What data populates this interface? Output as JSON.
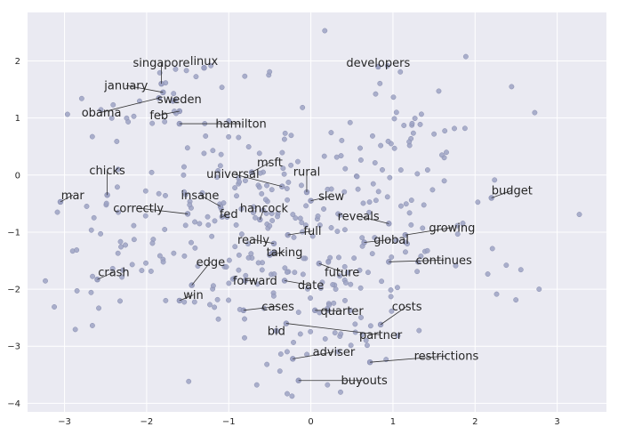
{
  "chart_data": {
    "type": "scatter",
    "title": "",
    "xlabel": "",
    "ylabel": "",
    "xlim": [
      -3.45,
      3.6
    ],
    "ylim": [
      -4.15,
      2.85
    ],
    "xticks": [
      -3,
      -2,
      -1,
      0,
      1,
      2,
      3
    ],
    "yticks": [
      2,
      1,
      0,
      -1,
      -2,
      -3,
      -4
    ],
    "grid": true,
    "colors": {
      "background": "#eaeaf2",
      "grid": "#ffffff",
      "point": "#9ea3c4",
      "point_edge": "#8a8fb0",
      "text": "#262626"
    },
    "labeled_points": [
      {
        "word": "linux",
        "x": -1.3,
        "y": 1.88,
        "lx": -1.3,
        "ly": 2.0
      },
      {
        "word": "singapore",
        "x": -1.82,
        "y": 1.6,
        "lx": -1.82,
        "ly": 1.97
      },
      {
        "word": "developers",
        "x": 0.82,
        "y": 1.9,
        "lx": 0.82,
        "ly": 1.97
      },
      {
        "word": "january",
        "x": -1.8,
        "y": 1.45,
        "lx": -2.25,
        "ly": 1.57
      },
      {
        "word": "sweden",
        "x": -1.68,
        "y": 1.3,
        "lx": -1.6,
        "ly": 1.33
      },
      {
        "word": "obama",
        "x": -1.85,
        "y": 1.35,
        "lx": -2.55,
        "ly": 1.1
      },
      {
        "word": "feb",
        "x": -1.6,
        "y": 1.12,
        "lx": -1.85,
        "ly": 1.05
      },
      {
        "word": "hamilton",
        "x": -1.6,
        "y": 0.9,
        "lx": -0.85,
        "ly": 0.9
      },
      {
        "word": "chicks",
        "x": -2.48,
        "y": -0.35,
        "lx": -2.48,
        "ly": 0.08
      },
      {
        "word": "msft",
        "x": -0.72,
        "y": 0.05,
        "lx": -0.5,
        "ly": 0.22
      },
      {
        "word": "rural",
        "x": -0.05,
        "y": -0.3,
        "lx": -0.05,
        "ly": 0.06
      },
      {
        "word": "universal",
        "x": -0.35,
        "y": -0.2,
        "lx": -0.95,
        "ly": 0.02
      },
      {
        "word": "mar",
        "x": -3.05,
        "y": -0.47,
        "lx": -2.9,
        "ly": -0.35
      },
      {
        "word": "budget",
        "x": 2.2,
        "y": -0.4,
        "lx": 2.45,
        "ly": -0.27
      },
      {
        "word": "insane",
        "x": -1.1,
        "y": -0.55,
        "lx": -1.35,
        "ly": -0.35
      },
      {
        "word": "slew",
        "x": 0.0,
        "y": -0.45,
        "lx": 0.25,
        "ly": -0.37
      },
      {
        "word": "correctly",
        "x": -1.5,
        "y": -0.68,
        "lx": -2.1,
        "ly": -0.58
      },
      {
        "word": "hancock",
        "x": -0.62,
        "y": -0.78,
        "lx": -0.57,
        "ly": -0.58
      },
      {
        "word": "fed",
        "x": -1.08,
        "y": -0.73,
        "lx": -1.0,
        "ly": -0.68
      },
      {
        "word": "reveals",
        "x": 0.95,
        "y": -0.85,
        "lx": 0.58,
        "ly": -0.72
      },
      {
        "word": "growing",
        "x": 1.15,
        "y": -1.05,
        "lx": 1.72,
        "ly": -0.92
      },
      {
        "word": "full",
        "x": -0.28,
        "y": -1.05,
        "lx": 0.02,
        "ly": -0.98
      },
      {
        "word": "really",
        "x": -0.45,
        "y": -1.2,
        "lx": -0.7,
        "ly": -1.13
      },
      {
        "word": "global",
        "x": 0.65,
        "y": -1.18,
        "lx": 0.98,
        "ly": -1.13
      },
      {
        "word": "taking",
        "x": -0.5,
        "y": -1.4,
        "lx": -0.32,
        "ly": -1.35
      },
      {
        "word": "continues",
        "x": 0.95,
        "y": -1.52,
        "lx": 1.62,
        "ly": -1.49
      },
      {
        "word": "edge",
        "x": -1.45,
        "y": -1.93,
        "lx": -1.22,
        "ly": -1.52
      },
      {
        "word": "crash",
        "x": -2.6,
        "y": -1.83,
        "lx": -2.4,
        "ly": -1.7
      },
      {
        "word": "future",
        "x": 0.1,
        "y": -1.55,
        "lx": 0.38,
        "ly": -1.7
      },
      {
        "word": "forward",
        "x": -0.8,
        "y": -1.85,
        "lx": -0.68,
        "ly": -1.85
      },
      {
        "word": "date",
        "x": -0.32,
        "y": -1.85,
        "lx": 0.0,
        "ly": -1.93
      },
      {
        "word": "win",
        "x": -1.6,
        "y": -2.2,
        "lx": -1.43,
        "ly": -2.1
      },
      {
        "word": "cases",
        "x": -0.82,
        "y": -2.37,
        "lx": -0.4,
        "ly": -2.3
      },
      {
        "word": "quarter",
        "x": 0.05,
        "y": -2.37,
        "lx": 0.38,
        "ly": -2.38
      },
      {
        "word": "costs",
        "x": 0.85,
        "y": -2.62,
        "lx": 1.17,
        "ly": -2.3
      },
      {
        "word": "partner",
        "x": -0.3,
        "y": -2.6,
        "lx": 0.85,
        "ly": -2.8
      },
      {
        "word": "bid",
        "x": -0.42,
        "y": -2.73,
        "lx": -0.42,
        "ly": -2.73
      },
      {
        "word": "adviser",
        "x": -0.22,
        "y": -3.22,
        "lx": 0.28,
        "ly": -3.1
      },
      {
        "word": "restrictions",
        "x": 0.72,
        "y": -3.28,
        "lx": 1.65,
        "ly": -3.17
      },
      {
        "word": "buyouts",
        "x": -0.15,
        "y": -3.6,
        "lx": 0.65,
        "ly": -3.6
      }
    ]
  }
}
